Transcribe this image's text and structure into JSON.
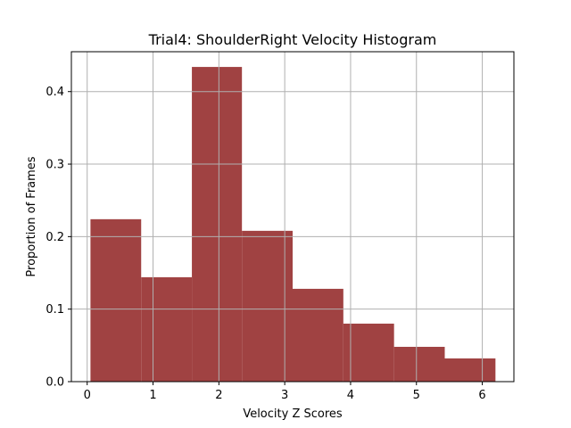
{
  "chart_data": {
    "type": "bar",
    "subtype": "histogram",
    "title": "Trial4: ShoulderRight Velocity Histogram",
    "xlabel": "Velocity Z Scores",
    "ylabel": "Proportion of Frames",
    "xlim": [
      -0.24,
      6.48
    ],
    "ylim": [
      0,
      0.455
    ],
    "xticks": [
      0,
      1,
      2,
      3,
      4,
      5,
      6
    ],
    "yticks": [
      0.0,
      0.1,
      0.2,
      0.3,
      0.4
    ],
    "ytick_labels": [
      "0.0",
      "0.1",
      "0.2",
      "0.3",
      "0.4"
    ],
    "grid": true,
    "bar_color": "#a04242",
    "bins": [
      {
        "start": 0.05,
        "end": 0.82,
        "value": 0.224
      },
      {
        "start": 0.82,
        "end": 1.59,
        "value": 0.144
      },
      {
        "start": 1.59,
        "end": 2.35,
        "value": 0.434
      },
      {
        "start": 2.35,
        "end": 3.12,
        "value": 0.208
      },
      {
        "start": 3.12,
        "end": 3.89,
        "value": 0.128
      },
      {
        "start": 3.89,
        "end": 4.66,
        "value": 0.08
      },
      {
        "start": 4.66,
        "end": 5.43,
        "value": 0.048
      },
      {
        "start": 5.43,
        "end": 6.2,
        "value": 0.032
      }
    ]
  }
}
